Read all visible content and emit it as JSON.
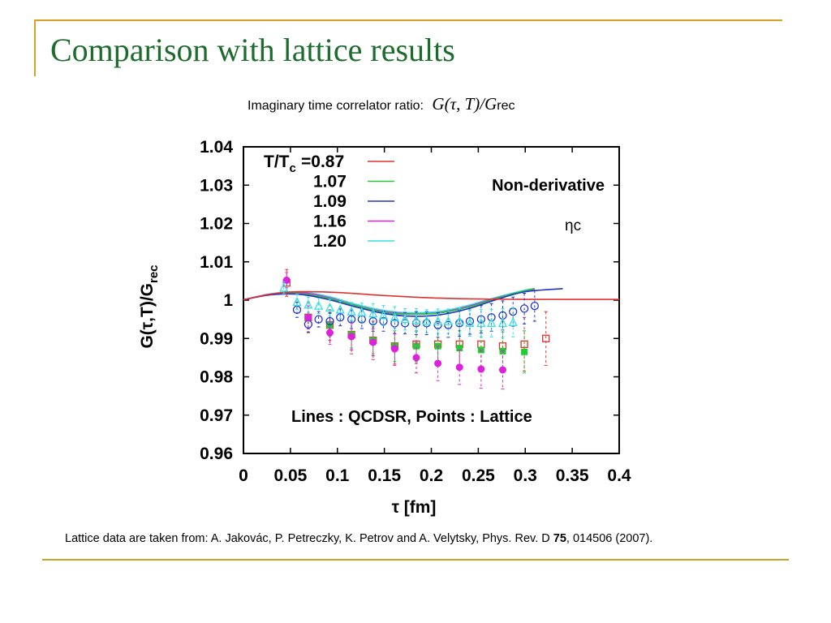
{
  "slide": {
    "title": "Comparison with lattice results",
    "subtitle_prefix": "Imaginary time correlator ratio:",
    "subtitle_formula": "G(τ, T)/G",
    "subtitle_formula_sub": "rec",
    "citation_pre": "Lattice data are taken from: A. Jakovác, P. Petreczky, K. Petrov and A. Velytsky, Phys. Rev. D ",
    "citation_bold": "75",
    "citation_post": ", 014506 (2007).",
    "accent_color": "#D4A12A",
    "title_color": "#1E6B2E"
  },
  "chart_data": {
    "type": "line",
    "xlabel": "τ [fm]",
    "ylabel": "G(τ,T)/G",
    "ylabel_sub": "rec",
    "xlim": [
      0,
      0.4
    ],
    "ylim": [
      0.96,
      1.04
    ],
    "x_ticks": [
      "0",
      "0.05",
      "0.1",
      "0.15",
      "0.2",
      "0.25",
      "0.3",
      "0.35",
      "0.4"
    ],
    "y_ticks": [
      "0.96",
      "0.97",
      "0.98",
      "0.99",
      "1",
      "1.01",
      "1.02",
      "1.03",
      "1.04"
    ],
    "grid": false,
    "legend_position": "top-left",
    "legend_header": "T/T",
    "legend_header_sub": "c",
    "annotations": {
      "mode": "Non-derivative",
      "state": "ηc",
      "note": "Lines : QCDSR, Points : Lattice"
    },
    "series": [
      {
        "name": "0.87",
        "legend_label": "=0.87",
        "color": "#e23030",
        "marker": "open-square",
        "line_x": [
          0.0,
          0.03,
          0.06,
          0.1,
          0.15,
          0.2,
          0.25,
          0.3,
          0.34,
          0.4
        ],
        "line_y": [
          1.0001,
          1.0016,
          1.0022,
          1.002,
          1.0012,
          1.0006,
          1.0003,
          1.0002,
          1.0002,
          1.0002
        ],
        "points": [
          {
            "x": 0.046,
            "y": 1.0045,
            "err": 0.0035
          },
          {
            "x": 0.069,
            "y": 0.9955,
            "err": 0.004
          },
          {
            "x": 0.092,
            "y": 0.9935,
            "err": 0.004
          },
          {
            "x": 0.115,
            "y": 0.991,
            "err": 0.005
          },
          {
            "x": 0.138,
            "y": 0.9895,
            "err": 0.005
          },
          {
            "x": 0.161,
            "y": 0.988,
            "err": 0.005
          },
          {
            "x": 0.184,
            "y": 0.9885,
            "err": 0.005
          },
          {
            "x": 0.207,
            "y": 0.9885,
            "err": 0.0055
          },
          {
            "x": 0.23,
            "y": 0.9885,
            "err": 0.0055
          },
          {
            "x": 0.253,
            "y": 0.9885,
            "err": 0.006
          },
          {
            "x": 0.276,
            "y": 0.988,
            "err": 0.0065
          },
          {
            "x": 0.299,
            "y": 0.9885,
            "err": 0.007
          },
          {
            "x": 0.322,
            "y": 0.99,
            "err": 0.007
          }
        ]
      },
      {
        "name": "1.07",
        "legend_label": "1.07",
        "color": "#22cc33",
        "marker": "filled-square",
        "line_x": [
          0.0,
          0.03,
          0.06,
          0.09,
          0.12,
          0.15,
          0.18,
          0.21,
          0.24,
          0.27,
          0.3,
          0.31
        ],
        "line_y": [
          1.0001,
          1.0015,
          1.0017,
          1.0005,
          0.9985,
          0.9968,
          0.9963,
          0.9967,
          0.9982,
          1.0005,
          1.0025,
          1.003
        ],
        "points": [
          {
            "x": 0.069,
            "y": 0.9955,
            "err": 0.003
          },
          {
            "x": 0.092,
            "y": 0.9935,
            "err": 0.003
          },
          {
            "x": 0.115,
            "y": 0.991,
            "err": 0.0035
          },
          {
            "x": 0.138,
            "y": 0.9895,
            "err": 0.0035
          },
          {
            "x": 0.161,
            "y": 0.988,
            "err": 0.004
          },
          {
            "x": 0.184,
            "y": 0.988,
            "err": 0.004
          },
          {
            "x": 0.207,
            "y": 0.988,
            "err": 0.0045
          },
          {
            "x": 0.23,
            "y": 0.9875,
            "err": 0.0045
          },
          {
            "x": 0.253,
            "y": 0.987,
            "err": 0.005
          },
          {
            "x": 0.276,
            "y": 0.9867,
            "err": 0.005
          },
          {
            "x": 0.299,
            "y": 0.9865,
            "err": 0.0055
          }
        ]
      },
      {
        "name": "1.09",
        "legend_label": "1.09",
        "color": "#2233cc",
        "marker": "open-circle",
        "line_x": [
          0.0,
          0.03,
          0.06,
          0.09,
          0.12,
          0.15,
          0.18,
          0.21,
          0.24,
          0.27,
          0.3,
          0.34
        ],
        "line_y": [
          1.0001,
          1.0014,
          1.0015,
          1.0002,
          0.9982,
          0.9965,
          0.9958,
          0.9962,
          0.9978,
          1.0002,
          1.0022,
          1.003
        ],
        "points": [
          {
            "x": 0.057,
            "y": 0.9975,
            "err": 0.002
          },
          {
            "x": 0.069,
            "y": 0.9937,
            "err": 0.002
          },
          {
            "x": 0.08,
            "y": 0.995,
            "err": 0.002
          },
          {
            "x": 0.092,
            "y": 0.9945,
            "err": 0.0022
          },
          {
            "x": 0.103,
            "y": 0.9955,
            "err": 0.0022
          },
          {
            "x": 0.115,
            "y": 0.995,
            "err": 0.0024
          },
          {
            "x": 0.126,
            "y": 0.995,
            "err": 0.0024
          },
          {
            "x": 0.138,
            "y": 0.9945,
            "err": 0.0026
          },
          {
            "x": 0.149,
            "y": 0.9945,
            "err": 0.0026
          },
          {
            "x": 0.161,
            "y": 0.994,
            "err": 0.0028
          },
          {
            "x": 0.172,
            "y": 0.994,
            "err": 0.0028
          },
          {
            "x": 0.184,
            "y": 0.994,
            "err": 0.003
          },
          {
            "x": 0.195,
            "y": 0.994,
            "err": 0.003
          },
          {
            "x": 0.207,
            "y": 0.9935,
            "err": 0.0032
          },
          {
            "x": 0.218,
            "y": 0.9935,
            "err": 0.0032
          },
          {
            "x": 0.23,
            "y": 0.994,
            "err": 0.0034
          },
          {
            "x": 0.241,
            "y": 0.9945,
            "err": 0.0034
          },
          {
            "x": 0.253,
            "y": 0.995,
            "err": 0.0036
          },
          {
            "x": 0.264,
            "y": 0.9955,
            "err": 0.0036
          },
          {
            "x": 0.276,
            "y": 0.996,
            "err": 0.0038
          },
          {
            "x": 0.287,
            "y": 0.997,
            "err": 0.0038
          },
          {
            "x": 0.299,
            "y": 0.9978,
            "err": 0.004
          },
          {
            "x": 0.31,
            "y": 0.9985,
            "err": 0.004
          }
        ]
      },
      {
        "name": "1.16",
        "legend_label": "1.16",
        "color": "#dd22dd",
        "marker": "filled-circle",
        "line_x": [
          0.0,
          0.03,
          0.06,
          0.09,
          0.12,
          0.15,
          0.18,
          0.21,
          0.24,
          0.27,
          0.3,
          0.31
        ],
        "line_y": [
          1.0001,
          1.0016,
          1.002,
          1.0007,
          0.9986,
          0.997,
          0.9964,
          0.9968,
          0.9984,
          1.0006,
          1.0024,
          1.0028
        ],
        "points": [
          {
            "x": 0.046,
            "y": 1.0052,
            "err": 0.002
          },
          {
            "x": 0.069,
            "y": 0.9955,
            "err": 0.003
          },
          {
            "x": 0.092,
            "y": 0.9915,
            "err": 0.003
          },
          {
            "x": 0.115,
            "y": 0.9905,
            "err": 0.0035
          },
          {
            "x": 0.138,
            "y": 0.989,
            "err": 0.0035
          },
          {
            "x": 0.161,
            "y": 0.9873,
            "err": 0.004
          },
          {
            "x": 0.184,
            "y": 0.985,
            "err": 0.004
          },
          {
            "x": 0.207,
            "y": 0.9835,
            "err": 0.0045
          },
          {
            "x": 0.23,
            "y": 0.9825,
            "err": 0.0045
          },
          {
            "x": 0.253,
            "y": 0.982,
            "err": 0.005
          },
          {
            "x": 0.276,
            "y": 0.9818,
            "err": 0.005
          }
        ]
      },
      {
        "name": "1.20",
        "legend_label": "1.20",
        "color": "#33e0e0",
        "marker": "open-triangle",
        "line_x": [
          0.0,
          0.03,
          0.06,
          0.09,
          0.12,
          0.15,
          0.18,
          0.21,
          0.24,
          0.27,
          0.3,
          0.31
        ],
        "line_y": [
          1.0001,
          1.0017,
          1.0022,
          1.001,
          0.9989,
          0.9973,
          0.9967,
          0.9971,
          0.9987,
          1.0008,
          1.0026,
          1.003
        ],
        "points": [
          {
            "x": 0.043,
            "y": 1.0032,
            "err": 0.0015
          },
          {
            "x": 0.057,
            "y": 0.9995,
            "err": 0.002
          },
          {
            "x": 0.069,
            "y": 0.9988,
            "err": 0.002
          },
          {
            "x": 0.08,
            "y": 0.9985,
            "err": 0.002
          },
          {
            "x": 0.092,
            "y": 0.998,
            "err": 0.0022
          },
          {
            "x": 0.103,
            "y": 0.9975,
            "err": 0.0022
          },
          {
            "x": 0.115,
            "y": 0.997,
            "err": 0.0024
          },
          {
            "x": 0.126,
            "y": 0.9968,
            "err": 0.0024
          },
          {
            "x": 0.138,
            "y": 0.9965,
            "err": 0.0026
          },
          {
            "x": 0.149,
            "y": 0.996,
            "err": 0.0026
          },
          {
            "x": 0.161,
            "y": 0.9955,
            "err": 0.0028
          },
          {
            "x": 0.172,
            "y": 0.995,
            "err": 0.0028
          },
          {
            "x": 0.184,
            "y": 0.9948,
            "err": 0.003
          },
          {
            "x": 0.195,
            "y": 0.9945,
            "err": 0.003
          },
          {
            "x": 0.207,
            "y": 0.9945,
            "err": 0.0032
          },
          {
            "x": 0.218,
            "y": 0.9945,
            "err": 0.0032
          },
          {
            "x": 0.23,
            "y": 0.9945,
            "err": 0.0034
          },
          {
            "x": 0.241,
            "y": 0.994,
            "err": 0.0034
          },
          {
            "x": 0.253,
            "y": 0.994,
            "err": 0.0036
          },
          {
            "x": 0.264,
            "y": 0.994,
            "err": 0.0036
          },
          {
            "x": 0.276,
            "y": 0.994,
            "err": 0.0038
          },
          {
            "x": 0.287,
            "y": 0.9942,
            "err": 0.0038
          }
        ]
      }
    ]
  }
}
